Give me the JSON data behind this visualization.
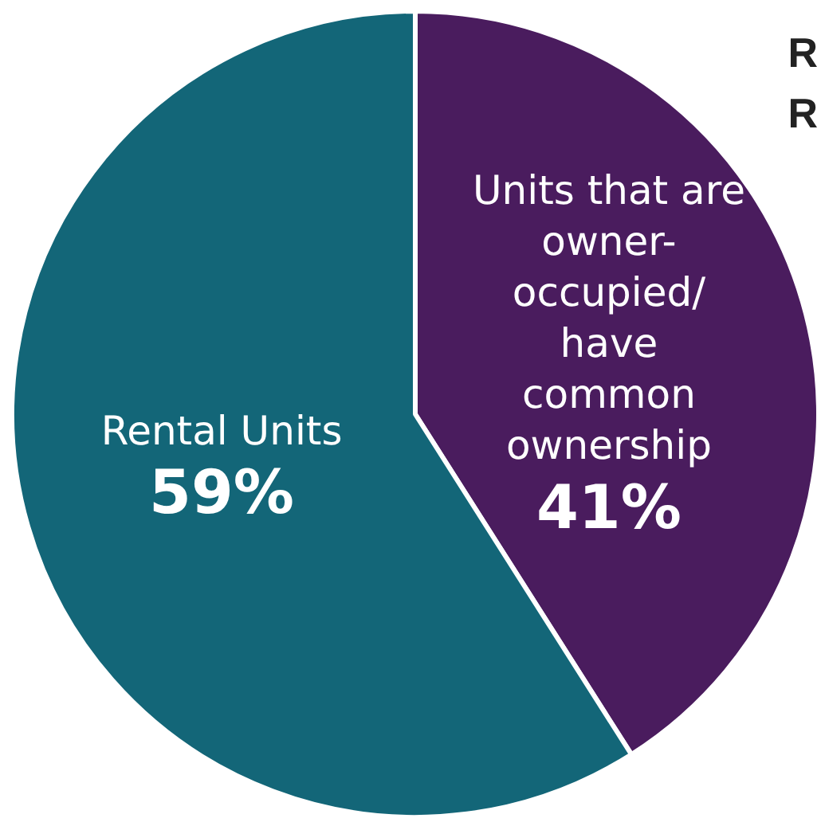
{
  "chart_data": {
    "type": "pie",
    "categories": [
      "Units that are owner-occupied/ have common ownership",
      "Rental Units"
    ],
    "values": [
      41,
      59
    ],
    "colors": [
      "#4a1c5e",
      "#136678"
    ],
    "value_labels": [
      "41%",
      "59%"
    ],
    "annotations": [
      "R",
      "R"
    ],
    "legend": false
  }
}
